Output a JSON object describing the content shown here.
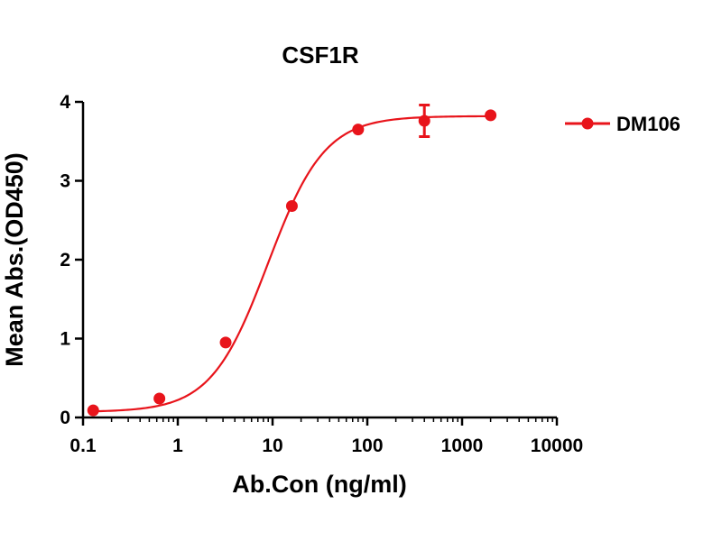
{
  "chart_data": {
    "type": "scatter",
    "title": "CSF1R",
    "xlabel": "Ab.Con (ng/ml)",
    "ylabel": "Mean Abs.(OD450)",
    "x_scale": "log",
    "xlim": [
      0.1,
      10000
    ],
    "ylim": [
      0,
      4
    ],
    "x_ticks": [
      0.1,
      1,
      10,
      100,
      1000,
      10000
    ],
    "x_tick_labels": [
      "0.1",
      "1",
      "10",
      "100",
      "1000",
      "10000"
    ],
    "y_ticks": [
      0,
      1,
      2,
      3,
      4
    ],
    "y_tick_labels": [
      "0",
      "1",
      "2",
      "3",
      "4"
    ],
    "grid": false,
    "legend": "right",
    "series": [
      {
        "name": "DM106",
        "color": "#e8141b",
        "marker": "circle",
        "fit": "sigmoidal 4PL",
        "points": [
          {
            "x": 0.128,
            "y": 0.09,
            "err": 0
          },
          {
            "x": 0.64,
            "y": 0.24,
            "err": 0
          },
          {
            "x": 3.2,
            "y": 0.95,
            "err": 0
          },
          {
            "x": 16,
            "y": 2.68,
            "err": 0
          },
          {
            "x": 80,
            "y": 3.65,
            "err": 0
          },
          {
            "x": 400,
            "y": 3.76,
            "err": 0.2
          },
          {
            "x": 2000,
            "y": 3.83,
            "err": 0
          }
        ],
        "curve": {
          "bottom": 0.07,
          "top": 3.82,
          "ec50": 8.9,
          "hill": 1.45
        }
      }
    ]
  }
}
